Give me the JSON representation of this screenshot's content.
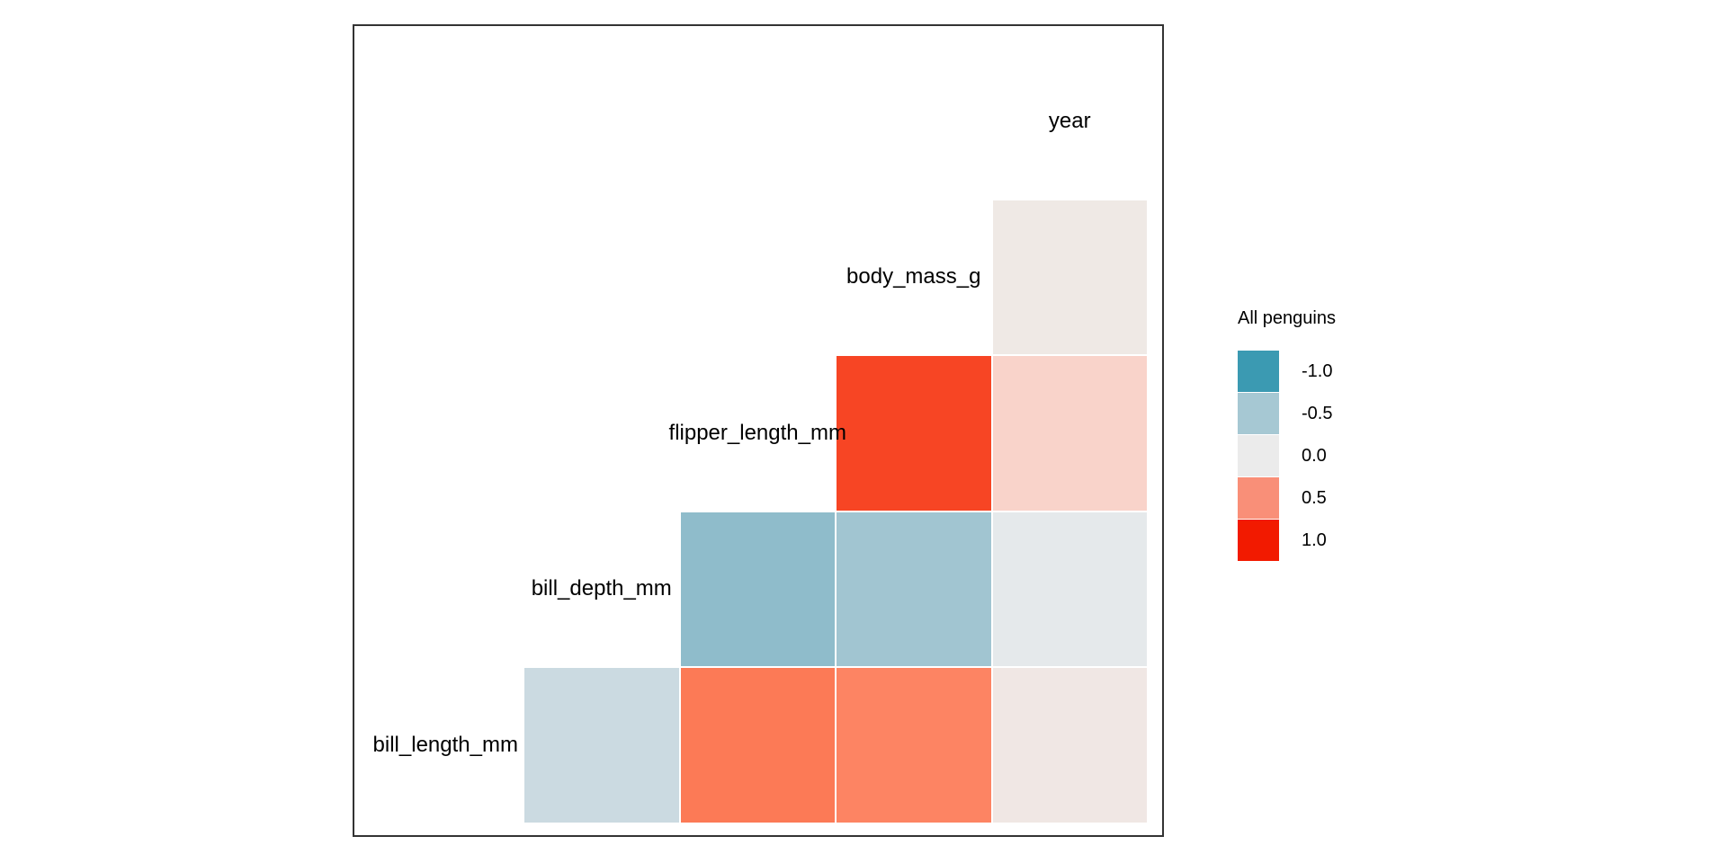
{
  "page": {
    "background": "#ffffff",
    "panel_border_color": "#333333"
  },
  "chart_data": {
    "type": "heatmap",
    "subtype": "correlation-triangle",
    "title": "",
    "legend_title": "All penguins",
    "legend_position": "right",
    "grid": "off",
    "variables": [
      "bill_length_mm",
      "bill_depth_mm",
      "flipper_length_mm",
      "body_mass_g",
      "year"
    ],
    "scale": {
      "breaks": [
        -1.0,
        -0.5,
        0.0,
        0.5,
        1.0
      ],
      "labels": [
        "-1.0",
        "-0.5",
        "0.0",
        "0.5",
        "1.0"
      ],
      "colors": [
        "#3B9AB2",
        "#A6C8D3",
        "#EBEBEB",
        "#F98F78",
        "#F21A00"
      ]
    },
    "cells": [
      {
        "y": "bill_length_mm",
        "x": "bill_depth_mm",
        "value": -0.25,
        "color": "#CBDAE1"
      },
      {
        "y": "bill_length_mm",
        "x": "flipper_length_mm",
        "value": 0.65,
        "color": "#FC7A56"
      },
      {
        "y": "bill_length_mm",
        "x": "body_mass_g",
        "value": 0.6,
        "color": "#FD8463"
      },
      {
        "y": "bill_length_mm",
        "x": "year",
        "value": 0.05,
        "color": "#F0E7E4"
      },
      {
        "y": "bill_depth_mm",
        "x": "flipper_length_mm",
        "value": -0.6,
        "color": "#8FBCCB"
      },
      {
        "y": "bill_depth_mm",
        "x": "body_mass_g",
        "value": -0.45,
        "color": "#A1C5D1"
      },
      {
        "y": "bill_depth_mm",
        "x": "year",
        "value": -0.05,
        "color": "#E5E9EB"
      },
      {
        "y": "flipper_length_mm",
        "x": "body_mass_g",
        "value": 0.85,
        "color": "#F74524"
      },
      {
        "y": "flipper_length_mm",
        "x": "year",
        "value": 0.15,
        "color": "#F9D3CA"
      },
      {
        "y": "body_mass_g",
        "x": "year",
        "value": 0.05,
        "color": "#EFE9E5"
      }
    ]
  }
}
